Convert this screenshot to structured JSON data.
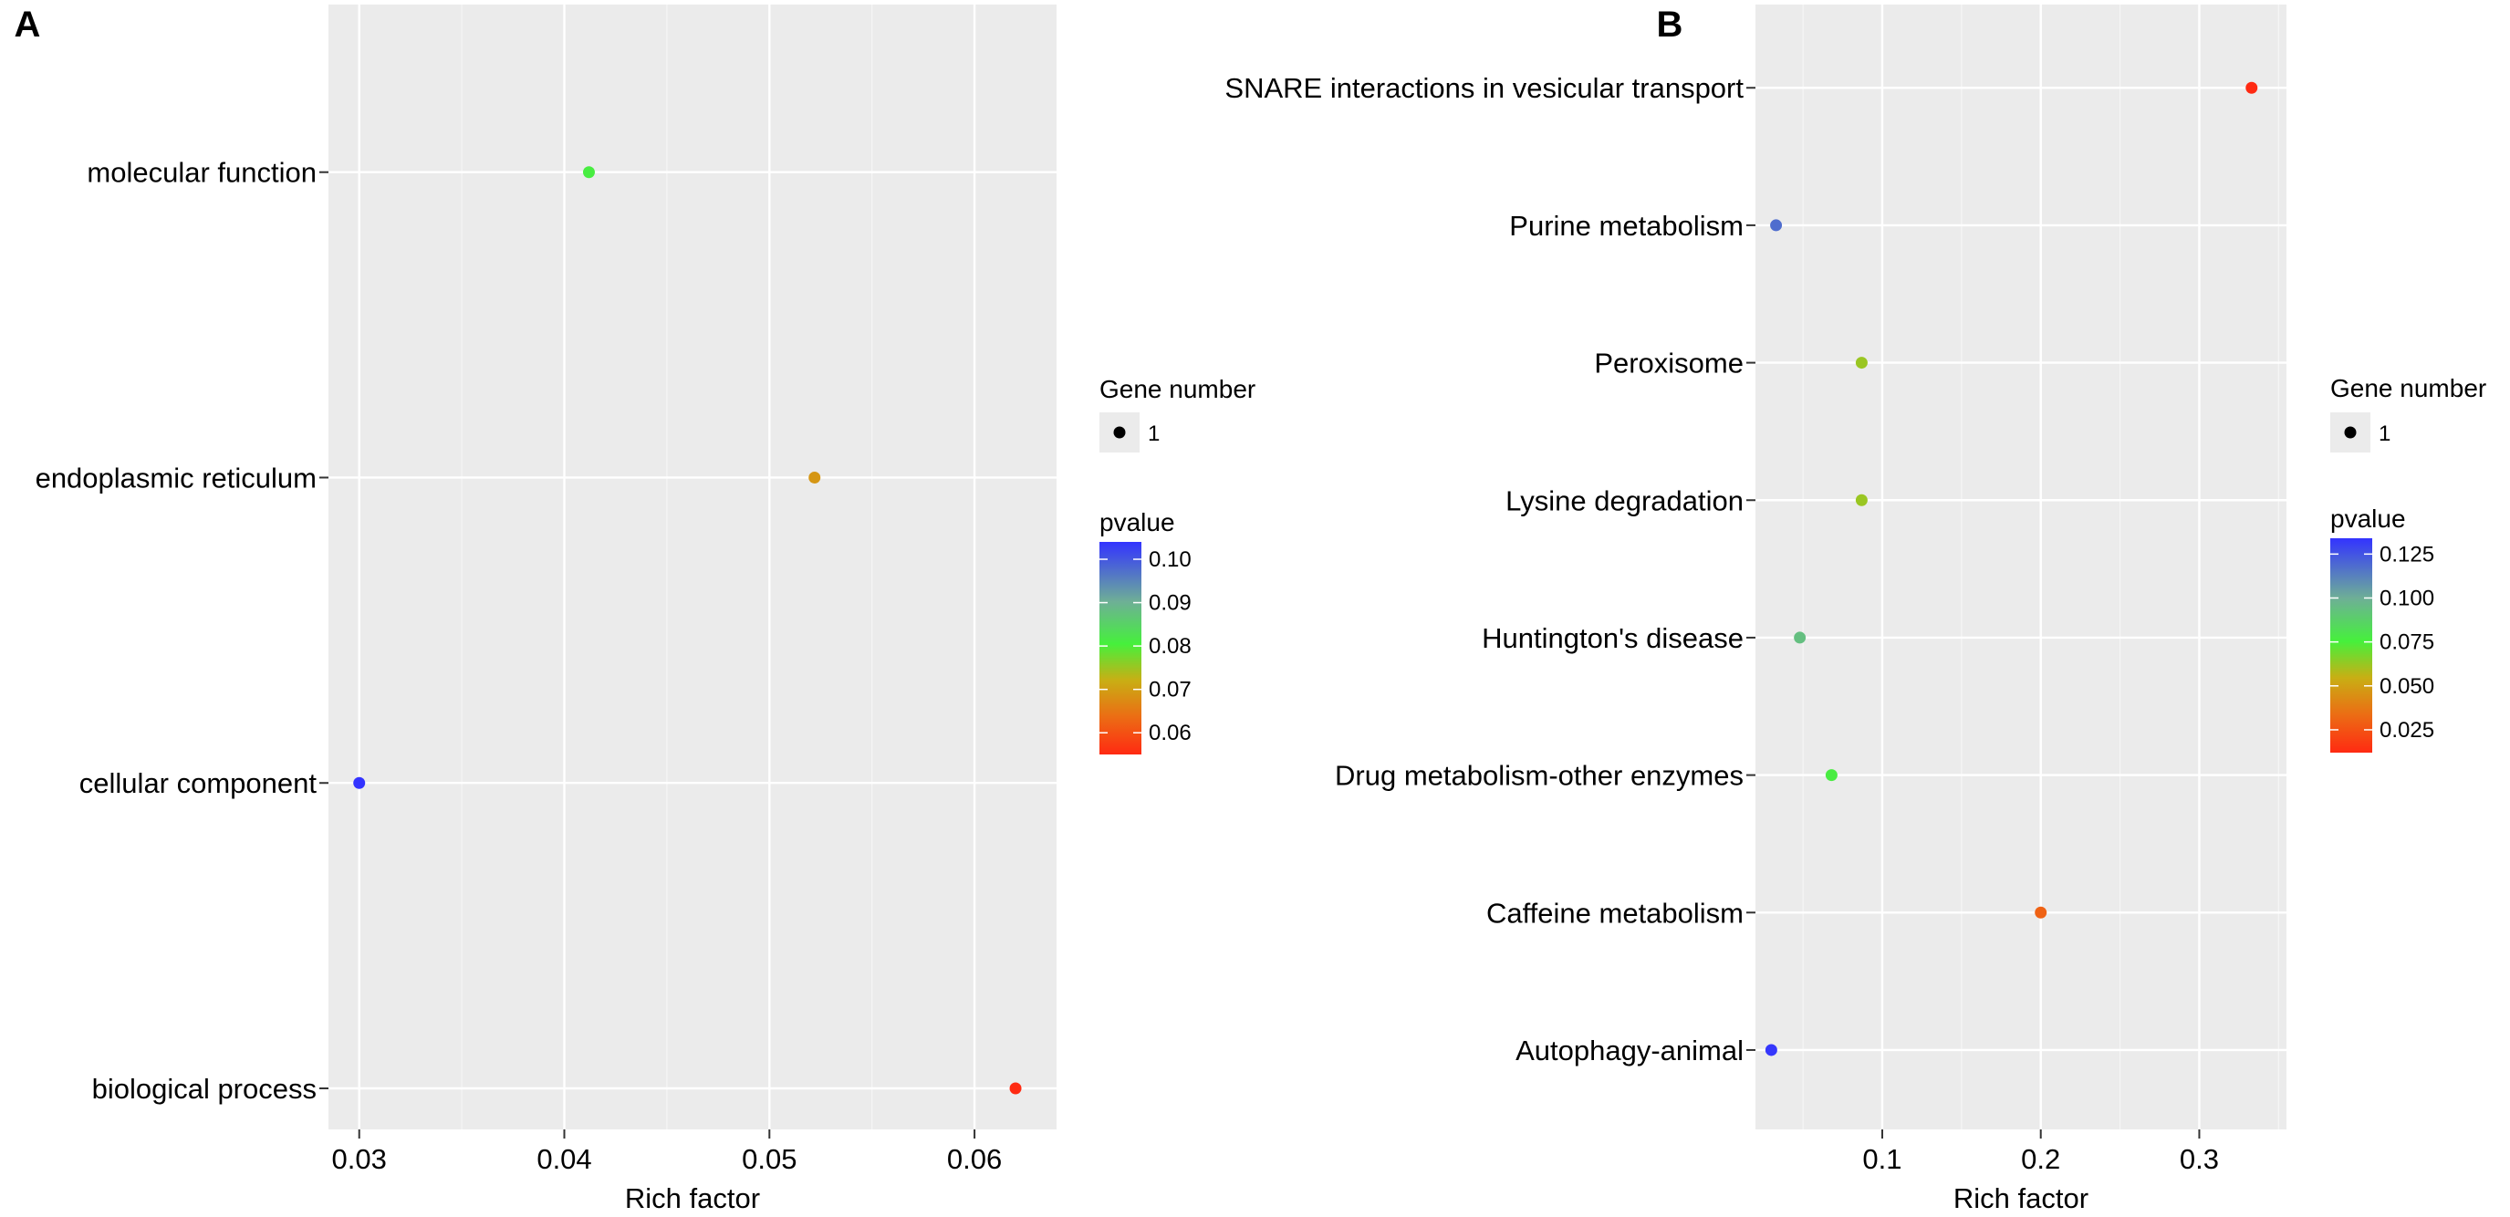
{
  "chart_data": [
    {
      "panel_label": "A",
      "type": "scatter",
      "xlabel": "Rich factor",
      "xlim": [
        0.0285,
        0.064
      ],
      "x_ticks": [
        0.03,
        0.04,
        0.05,
        0.06
      ],
      "x_tick_labels": [
        "0.03",
        "0.04",
        "0.05",
        "0.06"
      ],
      "categories": [
        "molecular function",
        "endoplasmic reticulum",
        "cellular component",
        "biological process"
      ],
      "points": [
        {
          "category": "molecular function",
          "x": 0.0412,
          "pvalue": 0.081
        },
        {
          "category": "endoplasmic reticulum",
          "x": 0.0522,
          "pvalue": 0.069
        },
        {
          "category": "cellular component",
          "x": 0.03,
          "pvalue": 0.104
        },
        {
          "category": "biological process",
          "x": 0.062,
          "pvalue": 0.055
        }
      ],
      "size_legend": {
        "title": "Gene  number",
        "value": "1"
      },
      "color_legend": {
        "title": "pvalue",
        "range": [
          0.055,
          0.104
        ],
        "ticks": [
          0.06,
          0.07,
          0.08,
          0.09,
          0.1
        ],
        "tick_labels": [
          "0.06",
          "0.07",
          "0.08",
          "0.09",
          "0.10"
        ],
        "low_color": "#ff2a12",
        "high_color": "#3333ff"
      },
      "grid": true
    },
    {
      "panel_label": "B",
      "type": "scatter",
      "xlabel": "Rich factor",
      "xlim": [
        0.02,
        0.355
      ],
      "x_ticks": [
        0.1,
        0.2,
        0.3
      ],
      "x_tick_labels": [
        "0.1",
        "0.2",
        "0.3"
      ],
      "categories": [
        "SNARE interactions in vesicular transport",
        "Purine metabolism",
        "Peroxisome",
        "Lysine degradation",
        "Huntington's disease",
        "Drug metabolism-other enzymes",
        "Caffeine metabolism",
        "Autophagy-animal"
      ],
      "points": [
        {
          "category": "SNARE interactions in vesicular transport",
          "x": 0.333,
          "pvalue": 0.012
        },
        {
          "category": "Purine metabolism",
          "x": 0.033,
          "pvalue": 0.118
        },
        {
          "category": "Peroxisome",
          "x": 0.087,
          "pvalue": 0.062
        },
        {
          "category": "Lysine degradation",
          "x": 0.087,
          "pvalue": 0.062
        },
        {
          "category": "Huntington's disease",
          "x": 0.048,
          "pvalue": 0.094
        },
        {
          "category": "Drug metabolism-other enzymes",
          "x": 0.068,
          "pvalue": 0.077
        },
        {
          "category": "Caffeine metabolism",
          "x": 0.2,
          "pvalue": 0.03
        },
        {
          "category": "Autophagy-animal",
          "x": 0.03,
          "pvalue": 0.133
        }
      ],
      "size_legend": {
        "title": "Gene  number",
        "value": "1"
      },
      "color_legend": {
        "title": "pvalue",
        "range": [
          0.012,
          0.134
        ],
        "ticks": [
          0.025,
          0.05,
          0.075,
          0.1,
          0.125
        ],
        "tick_labels": [
          "0.025",
          "0.050",
          "0.075",
          "0.100",
          "0.125"
        ],
        "low_color": "#ff2a12",
        "high_color": "#3333ff"
      },
      "grid": true
    }
  ]
}
